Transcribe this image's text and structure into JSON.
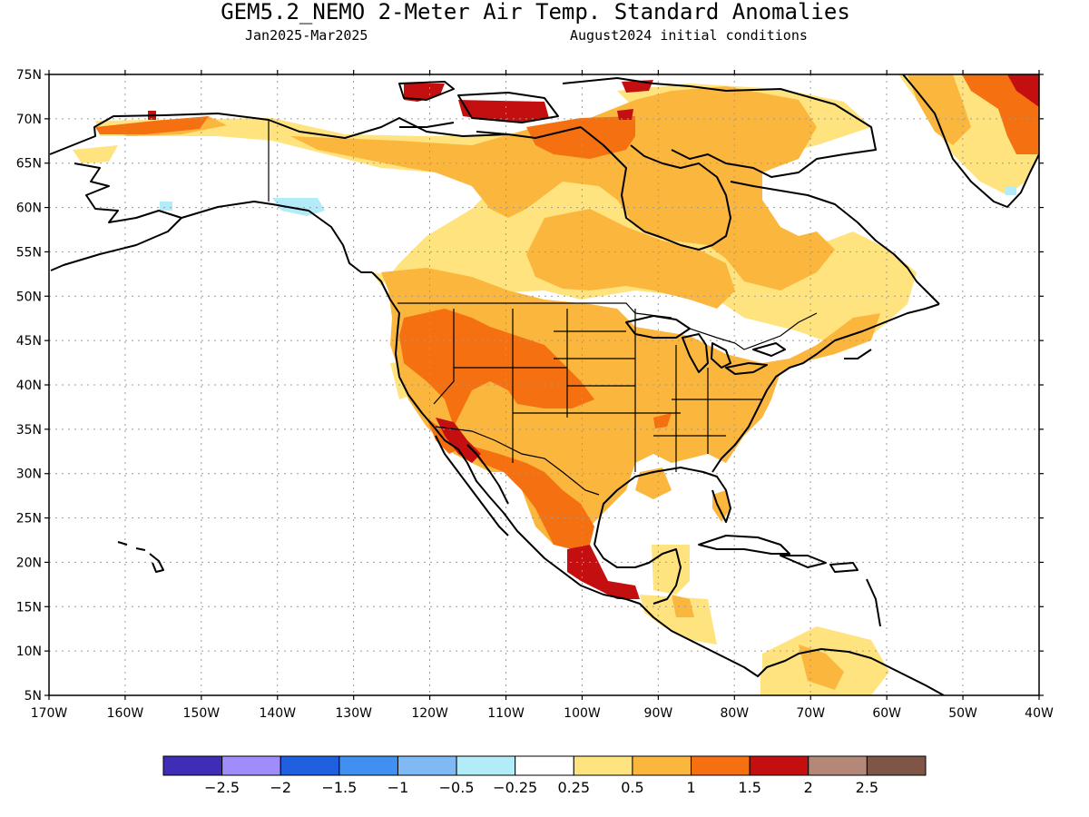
{
  "title": "GEM5.2_NEMO 2-Meter Air Temp. Standard Anomalies",
  "subtitle_left": "Jan2025-Mar2025",
  "subtitle_right": "August2024 initial conditions",
  "map": {
    "lon_labels": [
      "170W",
      "160W",
      "150W",
      "140W",
      "130W",
      "120W",
      "110W",
      "100W",
      "90W",
      "80W",
      "70W",
      "60W",
      "50W",
      "40W"
    ],
    "lat_labels": [
      "75N",
      "70N",
      "65N",
      "60N",
      "55N",
      "50N",
      "45N",
      "40N",
      "35N",
      "30N",
      "25N",
      "20N",
      "15N",
      "10N",
      "5N"
    ],
    "grid": true
  },
  "colorbar": {
    "colors": [
      "#3f2db8",
      "#a08cfa",
      "#1f5fe0",
      "#3f90f0",
      "#7fbaf5",
      "#b2ecf8",
      "#ffffff",
      "#ffe37f",
      "#fbb63e",
      "#f57010",
      "#c30f0f",
      "#b48878",
      "#7e5547"
    ],
    "labels": [
      "−2.5",
      "−2",
      "−1.5",
      "−1",
      "−0.5",
      "−0.25",
      "0.25",
      "0.5",
      "1",
      "1.5",
      "2",
      "2.5"
    ]
  },
  "anomaly_colors": {
    "0.25-0.5": "#ffe37f",
    "0.5-1": "#fbb63e",
    "1-1.5": "#f57010",
    "1.5-2": "#c30f0f",
    "-0.5--0.25": "#b2ecf8"
  }
}
